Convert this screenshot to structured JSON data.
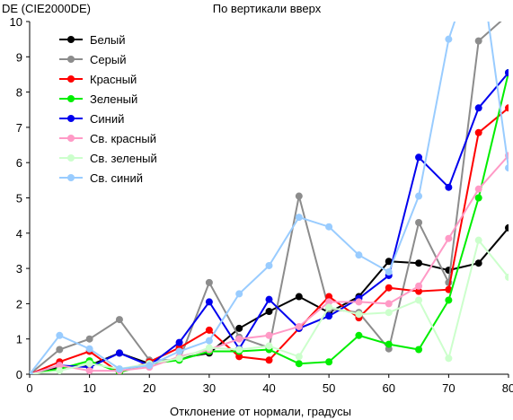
{
  "chart_data": {
    "type": "line",
    "title": "По вертикали вверх",
    "ylabel": "DE (CIE2000DE)",
    "xlabel": "Отклонение от нормали, градусы",
    "xlim": [
      0,
      80
    ],
    "ylim": [
      0,
      10
    ],
    "x_ticks": [
      0,
      10,
      20,
      30,
      40,
      50,
      60,
      70,
      80
    ],
    "y_ticks": [
      0,
      1,
      2,
      3,
      4,
      5,
      6,
      7,
      8,
      9,
      10
    ],
    "grid": false,
    "legend_position": "top-left",
    "x": [
      0,
      5,
      10,
      15,
      20,
      25,
      30,
      35,
      40,
      45,
      50,
      55,
      60,
      65,
      70,
      75,
      80
    ],
    "series": [
      {
        "name": "Белый",
        "color": "#000000",
        "values": [
          0,
          0.2,
          0.25,
          0.6,
          0.3,
          0.45,
          0.6,
          1.3,
          1.78,
          2.2,
          1.75,
          2.2,
          3.2,
          3.15,
          2.95,
          3.15,
          4.15
        ]
      },
      {
        "name": "Серый",
        "color": "#8c8c8c",
        "values": [
          0,
          0.7,
          1.0,
          1.55,
          0.4,
          0.4,
          2.6,
          1.05,
          0.75,
          5.05,
          1.85,
          1.75,
          0.72,
          4.3,
          2.6,
          9.45,
          10.2
        ]
      },
      {
        "name": "Красный",
        "color": "#ff0000",
        "values": [
          0,
          0.35,
          0.65,
          0.05,
          0.35,
          0.75,
          1.25,
          0.5,
          0.4,
          1.3,
          2.2,
          1.6,
          2.45,
          2.35,
          2.4,
          6.85,
          7.55
        ]
      },
      {
        "name": "Зеленый",
        "color": "#00ee00",
        "values": [
          0,
          0.15,
          0.38,
          0.05,
          0.3,
          0.4,
          0.65,
          0.65,
          0.7,
          0.3,
          0.35,
          1.1,
          0.85,
          0.7,
          2.1,
          5.0,
          8.55
        ]
      },
      {
        "name": "Синий",
        "color": "#0000ee",
        "values": [
          0,
          0.25,
          0.2,
          0.6,
          0.25,
          0.9,
          2.05,
          0.72,
          2.12,
          1.3,
          1.65,
          2.15,
          2.8,
          6.15,
          5.3,
          7.55,
          8.55
        ]
      },
      {
        "name": "Св. красный",
        "color": "#ff9ac6",
        "values": [
          0,
          0.25,
          0.1,
          0.1,
          0.2,
          0.5,
          0.7,
          1.0,
          1.1,
          1.35,
          2.05,
          2.05,
          2.0,
          2.5,
          3.85,
          5.25,
          6.2
        ]
      },
      {
        "name": "Св. зеленый",
        "color": "#ccffcc",
        "values": [
          0,
          0.1,
          0.3,
          0.15,
          0.3,
          0.45,
          0.75,
          0.7,
          0.8,
          0.5,
          1.9,
          1.7,
          1.75,
          2.1,
          0.45,
          3.8,
          2.75
        ]
      },
      {
        "name": "Св. синий",
        "color": "#99ccff",
        "values": [
          0,
          1.1,
          0.72,
          0.15,
          0.25,
          0.65,
          0.95,
          2.28,
          3.08,
          4.45,
          4.18,
          3.38,
          2.9,
          5.05,
          9.5,
          12.0,
          5.85
        ]
      }
    ]
  }
}
